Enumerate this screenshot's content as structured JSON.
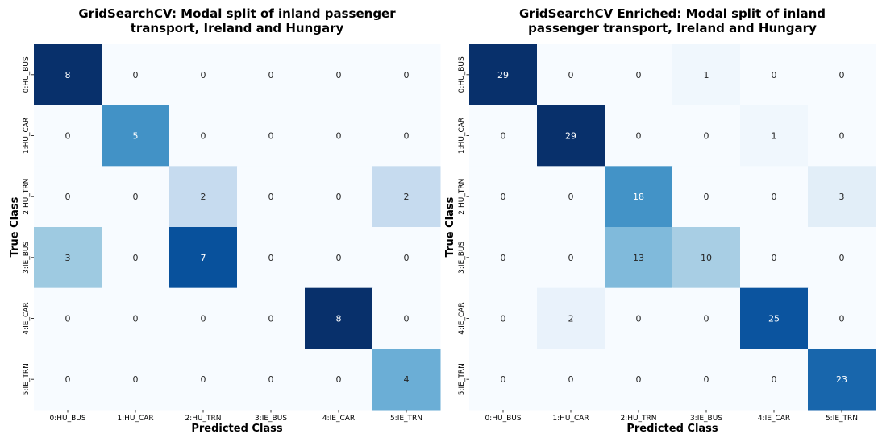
{
  "chart_data": [
    {
      "type": "heatmap",
      "title_lines": [
        "GridSearchCV: Modal split of inland passenger",
        "transport, Ireland and Hungary"
      ],
      "xlabel": "Predicted Class",
      "ylabel": "True Class",
      "x_categories": [
        "0:HU_BUS",
        "1:HU_CAR",
        "2:HU_TRN",
        "3:IE_BUS",
        "4:IE_CAR",
        "5:IE_TRN"
      ],
      "y_categories": [
        "0:HU_BUS",
        "1:HU_CAR",
        "2:HU_TRN",
        "3:IE_BUS",
        "4:IE_CAR",
        "5:IE_TRN"
      ],
      "values": [
        [
          8,
          0,
          0,
          0,
          0,
          0
        ],
        [
          0,
          5,
          0,
          0,
          0,
          0
        ],
        [
          0,
          0,
          2,
          0,
          0,
          2
        ],
        [
          3,
          0,
          7,
          0,
          0,
          0
        ],
        [
          0,
          0,
          0,
          0,
          8,
          0
        ],
        [
          0,
          0,
          0,
          0,
          0,
          4
        ]
      ],
      "colormap": "Blues",
      "vmin": 0,
      "vmax": 8,
      "colorbar": false
    },
    {
      "type": "heatmap",
      "title_lines": [
        "GridSearchCV Enriched: Modal split of inland",
        "passenger transport, Ireland and Hungary"
      ],
      "xlabel": "Predicted Class",
      "ylabel": "True Class",
      "x_categories": [
        "0:HU_BUS",
        "1:HU_CAR",
        "2:HU_TRN",
        "3:IE_BUS",
        "4:IE_CAR",
        "5:IE_TRN"
      ],
      "y_categories": [
        "0:HU_BUS",
        "1:HU_CAR",
        "2:HU_TRN",
        "3:IE_BUS",
        "4:IE_CAR",
        "5:IE_TRN"
      ],
      "values": [
        [
          29,
          0,
          0,
          1,
          0,
          0
        ],
        [
          0,
          29,
          0,
          0,
          1,
          0
        ],
        [
          0,
          0,
          18,
          0,
          0,
          3
        ],
        [
          0,
          0,
          13,
          10,
          0,
          0
        ],
        [
          0,
          2,
          0,
          0,
          25,
          0
        ],
        [
          0,
          0,
          0,
          0,
          0,
          23
        ]
      ],
      "colormap": "Blues",
      "vmin": 0,
      "vmax": 29,
      "colorbar": false
    }
  ]
}
